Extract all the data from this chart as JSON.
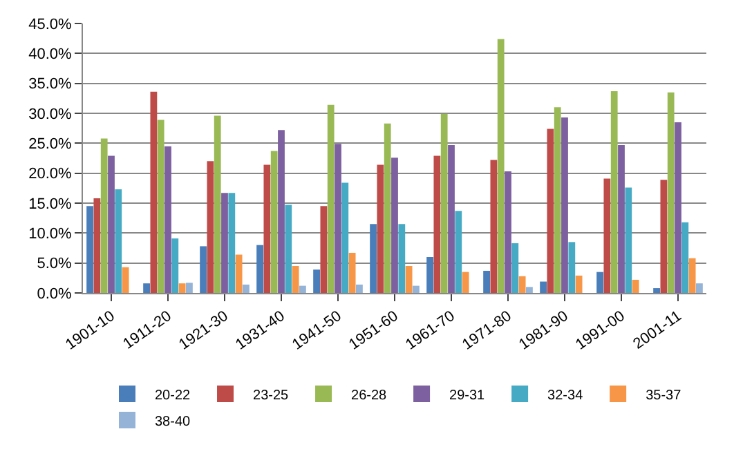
{
  "chart_data": {
    "type": "bar",
    "categories": [
      "1901-10",
      "1911-20",
      "1921-30",
      "1931-40",
      "1941-50",
      "1951-60",
      "1961-70",
      "1971-80",
      "1981-90",
      "1991-00",
      "2001-11"
    ],
    "series": [
      {
        "name": "20-22",
        "color": "#4a7ebb",
        "values": [
          14.5,
          1.6,
          7.8,
          8.0,
          3.9,
          11.5,
          6.0,
          3.7,
          1.9,
          3.5,
          0.8
        ]
      },
      {
        "name": "23-25",
        "color": "#be4b48",
        "values": [
          15.8,
          33.6,
          22.0,
          21.4,
          14.5,
          21.4,
          22.9,
          22.2,
          27.4,
          19.1,
          18.9
        ]
      },
      {
        "name": "26-28",
        "color": "#98b954",
        "values": [
          25.8,
          28.9,
          29.6,
          23.7,
          31.4,
          28.3,
          29.9,
          42.4,
          31.0,
          33.7,
          33.5
        ]
      },
      {
        "name": "29-31",
        "color": "#7d60a0",
        "values": [
          22.9,
          24.5,
          16.7,
          27.2,
          24.9,
          22.6,
          24.7,
          20.3,
          29.3,
          24.7,
          28.5
        ]
      },
      {
        "name": "32-34",
        "color": "#46aac5",
        "values": [
          17.3,
          9.1,
          16.7,
          14.7,
          18.4,
          11.5,
          13.7,
          8.3,
          8.5,
          17.6,
          11.8
        ]
      },
      {
        "name": "35-37",
        "color": "#f79646",
        "values": [
          4.3,
          1.6,
          6.4,
          4.5,
          6.7,
          4.5,
          3.5,
          2.8,
          2.9,
          2.2,
          5.8
        ]
      },
      {
        "name": "38-40",
        "color": "#95b3d7",
        "values": [
          0,
          1.7,
          1.4,
          1.2,
          1.4,
          1.2,
          0,
          1.0,
          0,
          0,
          1.6
        ]
      }
    ],
    "ylim": [
      0,
      45
    ],
    "yticks": [
      {
        "value": 0,
        "label": "0.0%"
      },
      {
        "value": 5,
        "label": "5.0%"
      },
      {
        "value": 10,
        "label": "10.0%"
      },
      {
        "value": 15,
        "label": "15.0%"
      },
      {
        "value": 20,
        "label": "20.0%"
      },
      {
        "value": 25,
        "label": "25.0%"
      },
      {
        "value": 30,
        "label": "30.0%"
      },
      {
        "value": 35,
        "label": "35.0%"
      },
      {
        "value": 40,
        "label": "40.0%"
      },
      {
        "value": 45,
        "label": "45.0%"
      }
    ],
    "grid": "y",
    "legend": "bottom"
  }
}
